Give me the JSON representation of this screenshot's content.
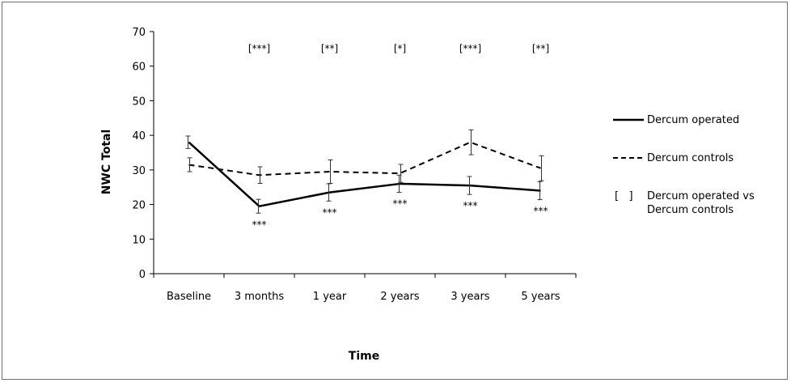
{
  "chart_data": {
    "type": "line",
    "title": "",
    "xlabel": "Time",
    "ylabel": "NWC Total",
    "categories": [
      "Baseline",
      "3 months",
      "1 year",
      "2 years",
      "3 years",
      "5 years"
    ],
    "ylim": [
      0,
      70
    ],
    "yticks": [
      "0",
      "10",
      "20",
      "30",
      "40",
      "50",
      "60",
      "70"
    ],
    "grid": false,
    "series": [
      {
        "name": "Dercum operated",
        "line_style": "solid",
        "values": [
          38,
          19.5,
          23.5,
          26,
          25.5,
          24
        ],
        "error": [
          1.8,
          2.0,
          2.5,
          2.5,
          2.6,
          2.6
        ],
        "color": "#000000"
      },
      {
        "name": "Dercum controls",
        "line_style": "dashed",
        "values": [
          31.5,
          28.5,
          29.5,
          29,
          38,
          30.5
        ],
        "error": [
          2.0,
          2.4,
          3.4,
          2.6,
          3.6,
          3.6
        ],
        "color": "#000000"
      }
    ],
    "significance_vs_baseline": [
      "",
      "***",
      "***",
      "***",
      "***",
      "***"
    ],
    "significance_between_groups": [
      "",
      "[***]",
      "[**]",
      "[*]",
      "[***]",
      "[**]"
    ],
    "legend": {
      "placement": "right",
      "entries": [
        {
          "symbol": "solid",
          "label": "Dercum operated"
        },
        {
          "symbol": "dashed",
          "label": "Dercum controls"
        },
        {
          "symbol": "[   ]",
          "label_lines": [
            "Dercum operated vs",
            "Dercum controls"
          ]
        }
      ]
    }
  }
}
